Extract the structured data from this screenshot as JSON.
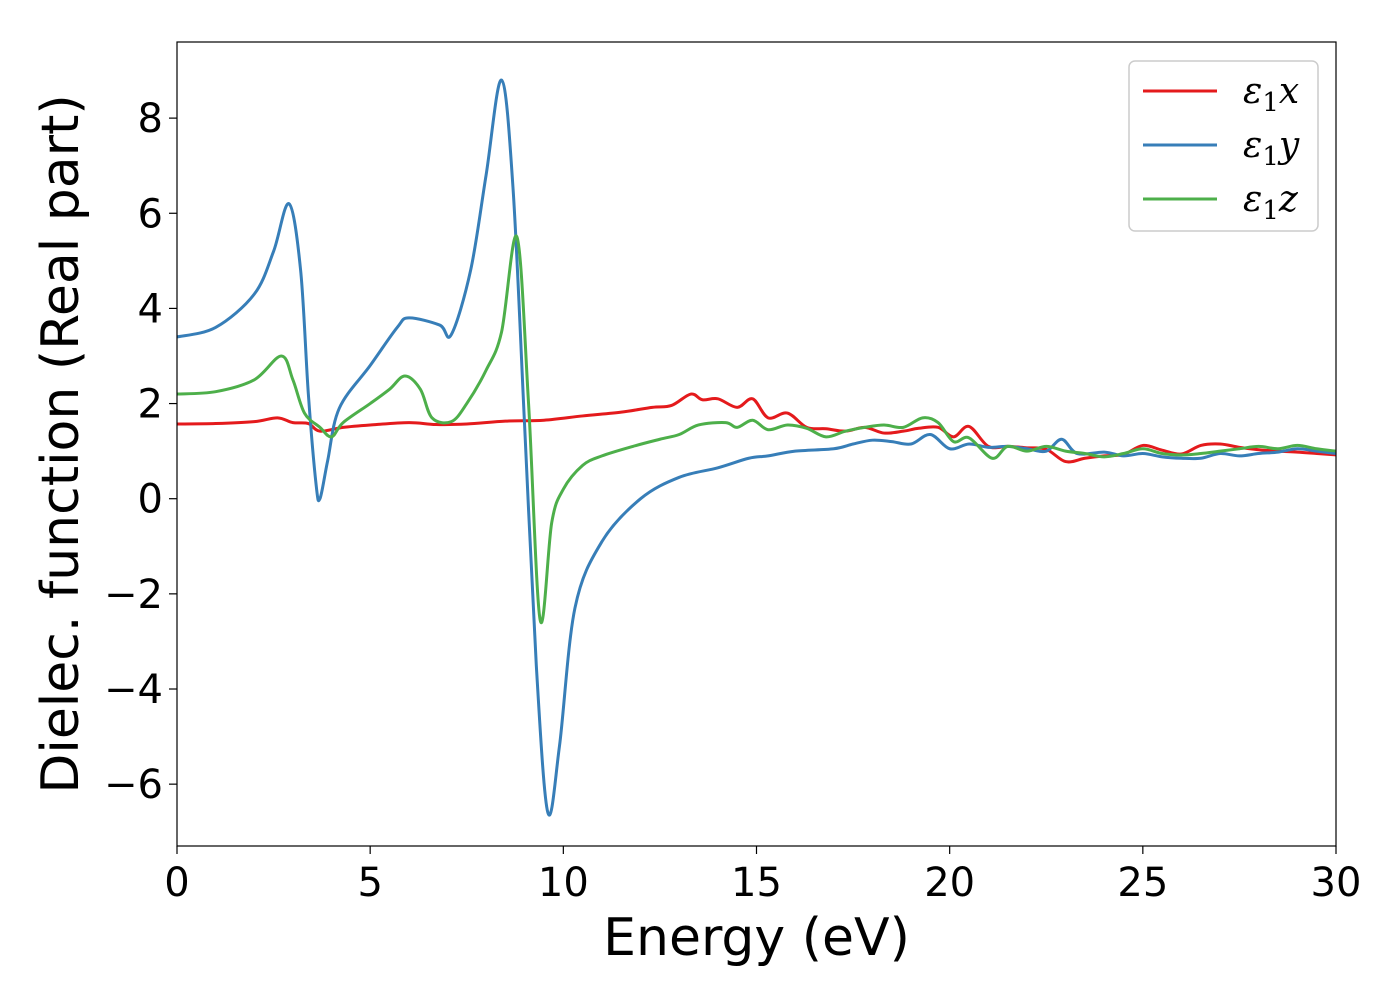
{
  "chart_data": {
    "type": "line",
    "title": "",
    "xlabel": "Energy (eV)",
    "ylabel": "Dielec. function (Real part)",
    "xlim": [
      0,
      30
    ],
    "ylim": [
      -7.3,
      9.6
    ],
    "xticks": [
      0,
      5,
      10,
      15,
      20,
      25,
      30
    ],
    "xtick_labels": [
      "0",
      "5",
      "10",
      "15",
      "20",
      "25",
      "30"
    ],
    "yticks": [
      8,
      6,
      4,
      2,
      0,
      -2,
      -4,
      -6
    ],
    "ytick_labels": [
      "8",
      "6",
      "4",
      "2",
      "0",
      "−2",
      "−4",
      "−6"
    ],
    "grid": false,
    "legend_position": "top-right",
    "series": [
      {
        "name": "ε1x",
        "color": "#e41a1c",
        "points": [
          [
            0,
            1.57
          ],
          [
            1,
            1.58
          ],
          [
            2,
            1.62
          ],
          [
            2.6,
            1.7
          ],
          [
            3,
            1.6
          ],
          [
            3.4,
            1.58
          ],
          [
            3.7,
            1.42
          ],
          [
            4.3,
            1.5
          ],
          [
            5,
            1.55
          ],
          [
            6,
            1.6
          ],
          [
            6.7,
            1.56
          ],
          [
            7.5,
            1.57
          ],
          [
            8.5,
            1.63
          ],
          [
            9.5,
            1.65
          ],
          [
            10.5,
            1.74
          ],
          [
            11.5,
            1.82
          ],
          [
            12.3,
            1.92
          ],
          [
            12.8,
            1.96
          ],
          [
            13.3,
            2.2
          ],
          [
            13.6,
            2.08
          ],
          [
            14,
            2.1
          ],
          [
            14.5,
            1.92
          ],
          [
            14.9,
            2.1
          ],
          [
            15.3,
            1.7
          ],
          [
            15.8,
            1.8
          ],
          [
            16.3,
            1.5
          ],
          [
            16.8,
            1.47
          ],
          [
            17.3,
            1.42
          ],
          [
            17.8,
            1.5
          ],
          [
            18.3,
            1.38
          ],
          [
            18.8,
            1.42
          ],
          [
            19.2,
            1.48
          ],
          [
            19.7,
            1.5
          ],
          [
            20.1,
            1.3
          ],
          [
            20.5,
            1.52
          ],
          [
            21,
            1.1
          ],
          [
            21.5,
            1.1
          ],
          [
            22,
            1.07
          ],
          [
            22.5,
            1.04
          ],
          [
            23,
            0.78
          ],
          [
            23.5,
            0.85
          ],
          [
            24,
            0.9
          ],
          [
            24.5,
            0.93
          ],
          [
            25,
            1.12
          ],
          [
            25.5,
            1.02
          ],
          [
            26,
            0.94
          ],
          [
            26.5,
            1.12
          ],
          [
            27,
            1.15
          ],
          [
            27.5,
            1.08
          ],
          [
            28,
            1.03
          ],
          [
            28.5,
            1.0
          ],
          [
            29,
            0.98
          ],
          [
            29.5,
            0.95
          ],
          [
            30,
            0.92
          ]
        ]
      },
      {
        "name": "ε1y",
        "color": "#377eb8",
        "points": [
          [
            0,
            3.4
          ],
          [
            1,
            3.6
          ],
          [
            2,
            4.3
          ],
          [
            2.5,
            5.2
          ],
          [
            2.9,
            6.2
          ],
          [
            3.2,
            4.8
          ],
          [
            3.4,
            2.2
          ],
          [
            3.6,
            0.3
          ],
          [
            3.7,
            0.0
          ],
          [
            3.9,
            0.8
          ],
          [
            4.2,
            1.9
          ],
          [
            5,
            2.8
          ],
          [
            5.7,
            3.6
          ],
          [
            6,
            3.8
          ],
          [
            6.8,
            3.65
          ],
          [
            7.1,
            3.45
          ],
          [
            7.6,
            4.8
          ],
          [
            8,
            6.8
          ],
          [
            8.4,
            8.8
          ],
          [
            8.7,
            6.5
          ],
          [
            9,
            1.5
          ],
          [
            9.3,
            -3.5
          ],
          [
            9.6,
            -6.6
          ],
          [
            9.9,
            -5.2
          ],
          [
            10.3,
            -2.3
          ],
          [
            11,
            -0.9
          ],
          [
            12,
            0.0
          ],
          [
            13,
            0.45
          ],
          [
            14,
            0.65
          ],
          [
            14.8,
            0.85
          ],
          [
            15.3,
            0.9
          ],
          [
            16,
            1.0
          ],
          [
            17,
            1.05
          ],
          [
            17.5,
            1.15
          ],
          [
            18,
            1.23
          ],
          [
            18.5,
            1.2
          ],
          [
            19,
            1.15
          ],
          [
            19.5,
            1.35
          ],
          [
            20,
            1.05
          ],
          [
            20.5,
            1.15
          ],
          [
            21,
            1.08
          ],
          [
            21.5,
            1.1
          ],
          [
            22,
            1.05
          ],
          [
            22.5,
            1.0
          ],
          [
            22.9,
            1.25
          ],
          [
            23.3,
            0.95
          ],
          [
            24,
            0.98
          ],
          [
            24.5,
            0.9
          ],
          [
            25,
            0.95
          ],
          [
            25.5,
            0.88
          ],
          [
            26,
            0.85
          ],
          [
            26.5,
            0.85
          ],
          [
            27,
            0.95
          ],
          [
            27.5,
            0.9
          ],
          [
            28,
            0.95
          ],
          [
            28.5,
            0.98
          ],
          [
            29,
            1.05
          ],
          [
            29.5,
            1.0
          ],
          [
            30,
            0.95
          ]
        ]
      },
      {
        "name": "ε1z",
        "color": "#4daf4a",
        "points": [
          [
            0,
            2.2
          ],
          [
            1,
            2.25
          ],
          [
            2,
            2.5
          ],
          [
            2.7,
            3.0
          ],
          [
            3,
            2.5
          ],
          [
            3.3,
            1.8
          ],
          [
            3.7,
            1.5
          ],
          [
            4,
            1.3
          ],
          [
            4.3,
            1.6
          ],
          [
            5,
            2.0
          ],
          [
            5.5,
            2.3
          ],
          [
            5.9,
            2.58
          ],
          [
            6.3,
            2.3
          ],
          [
            6.6,
            1.7
          ],
          [
            7.1,
            1.62
          ],
          [
            7.5,
            2.0
          ],
          [
            8,
            2.7
          ],
          [
            8.4,
            3.5
          ],
          [
            8.8,
            5.5
          ],
          [
            9.1,
            2.0
          ],
          [
            9.4,
            -2.55
          ],
          [
            9.7,
            -0.5
          ],
          [
            10,
            0.2
          ],
          [
            10.5,
            0.7
          ],
          [
            11,
            0.9
          ],
          [
            11.8,
            1.1
          ],
          [
            12.5,
            1.25
          ],
          [
            13,
            1.35
          ],
          [
            13.5,
            1.55
          ],
          [
            14.2,
            1.6
          ],
          [
            14.5,
            1.5
          ],
          [
            14.9,
            1.65
          ],
          [
            15.3,
            1.45
          ],
          [
            15.8,
            1.55
          ],
          [
            16.3,
            1.48
          ],
          [
            16.8,
            1.3
          ],
          [
            17.3,
            1.42
          ],
          [
            17.8,
            1.5
          ],
          [
            18.3,
            1.55
          ],
          [
            18.8,
            1.5
          ],
          [
            19.3,
            1.7
          ],
          [
            19.7,
            1.6
          ],
          [
            20.1,
            1.2
          ],
          [
            20.5,
            1.28
          ],
          [
            21.1,
            0.85
          ],
          [
            21.5,
            1.1
          ],
          [
            22,
            1.0
          ],
          [
            22.5,
            1.1
          ],
          [
            23,
            1.0
          ],
          [
            23.5,
            0.95
          ],
          [
            24,
            0.88
          ],
          [
            24.5,
            0.95
          ],
          [
            25,
            1.05
          ],
          [
            25.5,
            0.95
          ],
          [
            26,
            0.92
          ],
          [
            26.5,
            0.95
          ],
          [
            27,
            1.0
          ],
          [
            27.5,
            1.05
          ],
          [
            28,
            1.1
          ],
          [
            28.5,
            1.05
          ],
          [
            29,
            1.12
          ],
          [
            29.5,
            1.05
          ],
          [
            30,
            1.0
          ]
        ]
      }
    ]
  }
}
